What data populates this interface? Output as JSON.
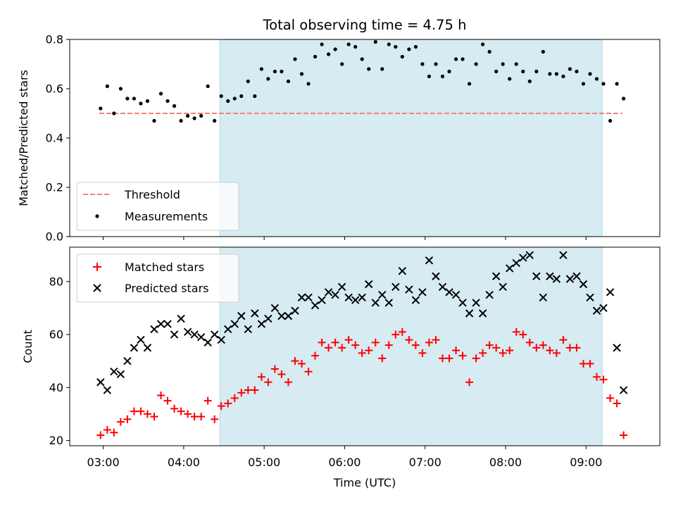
{
  "title": "Total observing time = 4.75 h",
  "colors": {
    "shade": "#add8e6",
    "threshold": "#f08080",
    "measurement": "#000000",
    "matched": "#ff0000",
    "predicted": "#000000"
  },
  "chart_data": [
    {
      "type": "scatter",
      "panel": "top",
      "ylabel": "Matched/Predicted stars",
      "xlabel": "",
      "ylim": [
        0.0,
        0.8
      ],
      "xlim": [
        "02:35",
        "09:55"
      ],
      "yticks": [
        "0.0",
        "0.2",
        "0.4",
        "0.6",
        "0.8"
      ],
      "legend_position": "lower-left",
      "grid": false,
      "shaded_interval": [
        "04:27",
        "09:12"
      ],
      "threshold": {
        "name": "Threshold",
        "value": 0.5,
        "x_start": "02:57",
        "x_end": "09:27",
        "style": "dashed"
      },
      "series": [
        {
          "name": "Measurements",
          "marker": "dot",
          "points": [
            [
              "02:58",
              0.52
            ],
            [
              "03:03",
              0.61
            ],
            [
              "03:08",
              0.5
            ],
            [
              "03:13",
              0.6
            ],
            [
              "03:18",
              0.56
            ],
            [
              "03:23",
              0.56
            ],
            [
              "03:28",
              0.54
            ],
            [
              "03:33",
              0.55
            ],
            [
              "03:38",
              0.47
            ],
            [
              "03:43",
              0.58
            ],
            [
              "03:48",
              0.55
            ],
            [
              "03:53",
              0.53
            ],
            [
              "03:58",
              0.47
            ],
            [
              "04:03",
              0.49
            ],
            [
              "04:08",
              0.48
            ],
            [
              "04:13",
              0.49
            ],
            [
              "04:18",
              0.61
            ],
            [
              "04:23",
              0.47
            ],
            [
              "04:28",
              0.57
            ],
            [
              "04:33",
              0.55
            ],
            [
              "04:38",
              0.56
            ],
            [
              "04:43",
              0.57
            ],
            [
              "04:48",
              0.63
            ],
            [
              "04:53",
              0.57
            ],
            [
              "04:58",
              0.68
            ],
            [
              "05:03",
              0.64
            ],
            [
              "05:08",
              0.67
            ],
            [
              "05:13",
              0.67
            ],
            [
              "05:18",
              0.63
            ],
            [
              "05:23",
              0.72
            ],
            [
              "05:28",
              0.66
            ],
            [
              "05:33",
              0.62
            ],
            [
              "05:38",
              0.73
            ],
            [
              "05:43",
              0.78
            ],
            [
              "05:48",
              0.74
            ],
            [
              "05:53",
              0.76
            ],
            [
              "05:58",
              0.7
            ],
            [
              "06:03",
              0.78
            ],
            [
              "06:08",
              0.77
            ],
            [
              "06:13",
              0.72
            ],
            [
              "06:18",
              0.68
            ],
            [
              "06:23",
              0.79
            ],
            [
              "06:28",
              0.68
            ],
            [
              "06:33",
              0.78
            ],
            [
              "06:38",
              0.77
            ],
            [
              "06:43",
              0.73
            ],
            [
              "06:48",
              0.76
            ],
            [
              "06:53",
              0.77
            ],
            [
              "06:58",
              0.7
            ],
            [
              "07:03",
              0.65
            ],
            [
              "07:08",
              0.7
            ],
            [
              "07:13",
              0.65
            ],
            [
              "07:18",
              0.67
            ],
            [
              "07:23",
              0.72
            ],
            [
              "07:28",
              0.72
            ],
            [
              "07:33",
              0.62
            ],
            [
              "07:38",
              0.7
            ],
            [
              "07:43",
              0.78
            ],
            [
              "07:48",
              0.75
            ],
            [
              "07:53",
              0.67
            ],
            [
              "07:58",
              0.7
            ],
            [
              "08:03",
              0.64
            ],
            [
              "08:08",
              0.7
            ],
            [
              "08:13",
              0.67
            ],
            [
              "08:18",
              0.63
            ],
            [
              "08:23",
              0.67
            ],
            [
              "08:28",
              0.75
            ],
            [
              "08:33",
              0.66
            ],
            [
              "08:38",
              0.66
            ],
            [
              "08:43",
              0.65
            ],
            [
              "08:48",
              0.68
            ],
            [
              "08:53",
              0.67
            ],
            [
              "08:58",
              0.62
            ],
            [
              "09:03",
              0.66
            ],
            [
              "09:08",
              0.64
            ],
            [
              "09:13",
              0.62
            ],
            [
              "09:18",
              0.47
            ],
            [
              "09:23",
              0.62
            ],
            [
              "09:28",
              0.56
            ]
          ]
        }
      ]
    },
    {
      "type": "scatter",
      "panel": "bottom",
      "ylabel": "Count",
      "xlabel": "Time (UTC)",
      "ylim": [
        18,
        93
      ],
      "xlim": [
        "02:35",
        "09:55"
      ],
      "yticks": [
        "20",
        "40",
        "60",
        "80"
      ],
      "xticks": [
        "03:00",
        "04:00",
        "05:00",
        "06:00",
        "07:00",
        "08:00",
        "09:00"
      ],
      "legend_position": "upper-left",
      "grid": false,
      "shaded_interval": [
        "04:27",
        "09:12"
      ],
      "series": [
        {
          "name": "Matched stars",
          "marker": "plus",
          "points": [
            [
              "02:58",
              22
            ],
            [
              "03:03",
              24
            ],
            [
              "03:08",
              23
            ],
            [
              "03:13",
              27
            ],
            [
              "03:18",
              28
            ],
            [
              "03:23",
              31
            ],
            [
              "03:28",
              31
            ],
            [
              "03:33",
              30
            ],
            [
              "03:38",
              29
            ],
            [
              "03:43",
              37
            ],
            [
              "03:48",
              35
            ],
            [
              "03:53",
              32
            ],
            [
              "03:58",
              31
            ],
            [
              "04:03",
              30
            ],
            [
              "04:08",
              29
            ],
            [
              "04:13",
              29
            ],
            [
              "04:18",
              35
            ],
            [
              "04:23",
              28
            ],
            [
              "04:28",
              33
            ],
            [
              "04:33",
              34
            ],
            [
              "04:38",
              36
            ],
            [
              "04:43",
              38
            ],
            [
              "04:48",
              39
            ],
            [
              "04:53",
              39
            ],
            [
              "04:58",
              44
            ],
            [
              "05:03",
              42
            ],
            [
              "05:08",
              47
            ],
            [
              "05:13",
              45
            ],
            [
              "05:18",
              42
            ],
            [
              "05:23",
              50
            ],
            [
              "05:28",
              49
            ],
            [
              "05:33",
              46
            ],
            [
              "05:38",
              52
            ],
            [
              "05:43",
              57
            ],
            [
              "05:48",
              55
            ],
            [
              "05:53",
              57
            ],
            [
              "05:58",
              55
            ],
            [
              "06:03",
              58
            ],
            [
              "06:08",
              56
            ],
            [
              "06:13",
              53
            ],
            [
              "06:18",
              54
            ],
            [
              "06:23",
              57
            ],
            [
              "06:28",
              51
            ],
            [
              "06:33",
              56
            ],
            [
              "06:38",
              60
            ],
            [
              "06:43",
              61
            ],
            [
              "06:48",
              58
            ],
            [
              "06:53",
              56
            ],
            [
              "06:58",
              53
            ],
            [
              "07:03",
              57
            ],
            [
              "07:08",
              58
            ],
            [
              "07:13",
              51
            ],
            [
              "07:18",
              51
            ],
            [
              "07:23",
              54
            ],
            [
              "07:28",
              52
            ],
            [
              "07:33",
              42
            ],
            [
              "07:38",
              51
            ],
            [
              "07:43",
              53
            ],
            [
              "07:48",
              56
            ],
            [
              "07:53",
              55
            ],
            [
              "07:58",
              53
            ],
            [
              "08:03",
              54
            ],
            [
              "08:08",
              61
            ],
            [
              "08:13",
              60
            ],
            [
              "08:18",
              57
            ],
            [
              "08:23",
              55
            ],
            [
              "08:28",
              56
            ],
            [
              "08:33",
              54
            ],
            [
              "08:38",
              53
            ],
            [
              "08:43",
              58
            ],
            [
              "08:48",
              55
            ],
            [
              "08:53",
              55
            ],
            [
              "08:58",
              49
            ],
            [
              "09:03",
              49
            ],
            [
              "09:08",
              44
            ],
            [
              "09:13",
              43
            ],
            [
              "09:18",
              36
            ],
            [
              "09:23",
              34
            ],
            [
              "09:28",
              22
            ]
          ]
        },
        {
          "name": "Predicted stars",
          "marker": "x",
          "points": [
            [
              "02:58",
              42
            ],
            [
              "03:03",
              39
            ],
            [
              "03:08",
              46
            ],
            [
              "03:13",
              45
            ],
            [
              "03:18",
              50
            ],
            [
              "03:23",
              55
            ],
            [
              "03:28",
              58
            ],
            [
              "03:33",
              55
            ],
            [
              "03:38",
              62
            ],
            [
              "03:43",
              64
            ],
            [
              "03:48",
              64
            ],
            [
              "03:53",
              60
            ],
            [
              "03:58",
              66
            ],
            [
              "04:03",
              61
            ],
            [
              "04:08",
              60
            ],
            [
              "04:13",
              59
            ],
            [
              "04:18",
              57
            ],
            [
              "04:23",
              60
            ],
            [
              "04:28",
              58
            ],
            [
              "04:33",
              62
            ],
            [
              "04:38",
              64
            ],
            [
              "04:43",
              67
            ],
            [
              "04:48",
              62
            ],
            [
              "04:53",
              68
            ],
            [
              "04:58",
              64
            ],
            [
              "05:03",
              66
            ],
            [
              "05:08",
              70
            ],
            [
              "05:13",
              67
            ],
            [
              "05:18",
              67
            ],
            [
              "05:23",
              69
            ],
            [
              "05:28",
              74
            ],
            [
              "05:33",
              74
            ],
            [
              "05:38",
              71
            ],
            [
              "05:43",
              73
            ],
            [
              "05:48",
              76
            ],
            [
              "05:53",
              75
            ],
            [
              "05:58",
              78
            ],
            [
              "06:03",
              74
            ],
            [
              "06:08",
              73
            ],
            [
              "06:13",
              74
            ],
            [
              "06:18",
              79
            ],
            [
              "06:23",
              72
            ],
            [
              "06:28",
              75
            ],
            [
              "06:33",
              72
            ],
            [
              "06:38",
              78
            ],
            [
              "06:43",
              84
            ],
            [
              "06:48",
              77
            ],
            [
              "06:53",
              73
            ],
            [
              "06:58",
              76
            ],
            [
              "07:03",
              88
            ],
            [
              "07:08",
              82
            ],
            [
              "07:13",
              78
            ],
            [
              "07:18",
              76
            ],
            [
              "07:23",
              75
            ],
            [
              "07:28",
              72
            ],
            [
              "07:33",
              68
            ],
            [
              "07:38",
              72
            ],
            [
              "07:43",
              68
            ],
            [
              "07:48",
              75
            ],
            [
              "07:53",
              82
            ],
            [
              "07:58",
              78
            ],
            [
              "08:03",
              85
            ],
            [
              "08:08",
              87
            ],
            [
              "08:13",
              89
            ],
            [
              "08:18",
              90
            ],
            [
              "08:23",
              82
            ],
            [
              "08:28",
              74
            ],
            [
              "08:33",
              82
            ],
            [
              "08:38",
              81
            ],
            [
              "08:43",
              90
            ],
            [
              "08:48",
              81
            ],
            [
              "08:53",
              82
            ],
            [
              "08:58",
              79
            ],
            [
              "09:03",
              74
            ],
            [
              "09:08",
              69
            ],
            [
              "09:13",
              70
            ],
            [
              "09:18",
              76
            ],
            [
              "09:23",
              55
            ],
            [
              "09:28",
              39
            ]
          ]
        }
      ]
    }
  ]
}
